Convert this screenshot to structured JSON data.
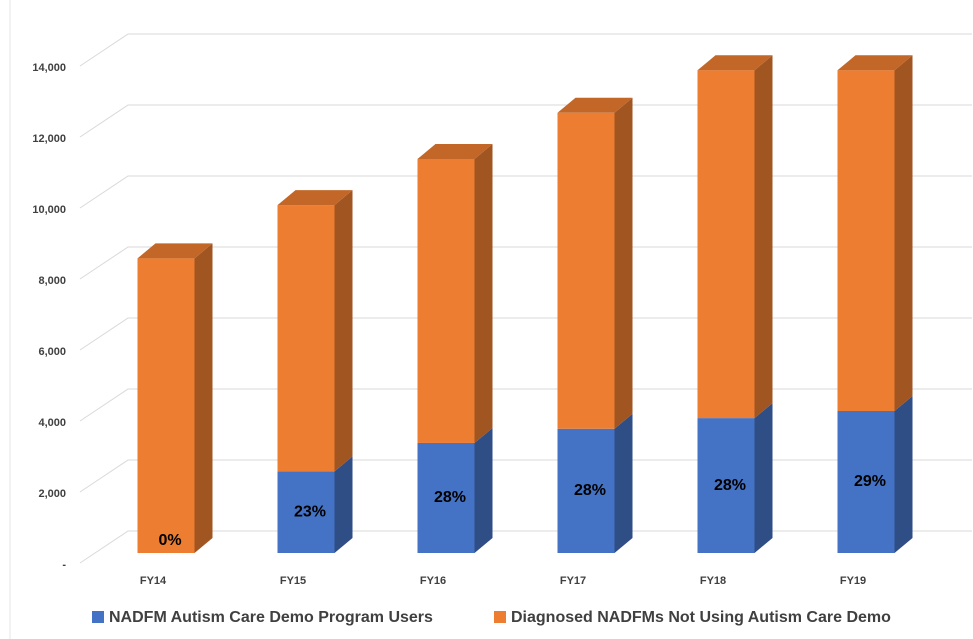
{
  "chart_data": {
    "type": "bar3d_stacked",
    "categories": [
      "FY14",
      "FY15",
      "FY16",
      "FY17",
      "FY18",
      "FY19"
    ],
    "series": [
      {
        "name": "NADFM Autism Care Demo Program Users",
        "color": "#4472c4",
        "values": [
          0,
          2300,
          3100,
          3500,
          3800,
          4000
        ]
      },
      {
        "name": "Diagnosed NADFMs Not Using Autism Care Demo",
        "color": "#ed7d31",
        "values": [
          8300,
          7500,
          8000,
          8900,
          9800,
          9600
        ]
      }
    ],
    "data_labels": [
      "0%",
      "23%",
      "28%",
      "28%",
      "28%",
      "29%"
    ],
    "ylim": [
      0,
      14000
    ],
    "yticks": [
      {
        "value": 0,
        "label": "-"
      },
      {
        "value": 2000,
        "label": "2,000"
      },
      {
        "value": 4000,
        "label": "4,000"
      },
      {
        "value": 6000,
        "label": "6,000"
      },
      {
        "value": 8000,
        "label": "8,000"
      },
      {
        "value": 10000,
        "label": "10,000"
      },
      {
        "value": 12000,
        "label": "12,000"
      },
      {
        "value": 14000,
        "label": "14,000"
      }
    ],
    "grid": true
  }
}
